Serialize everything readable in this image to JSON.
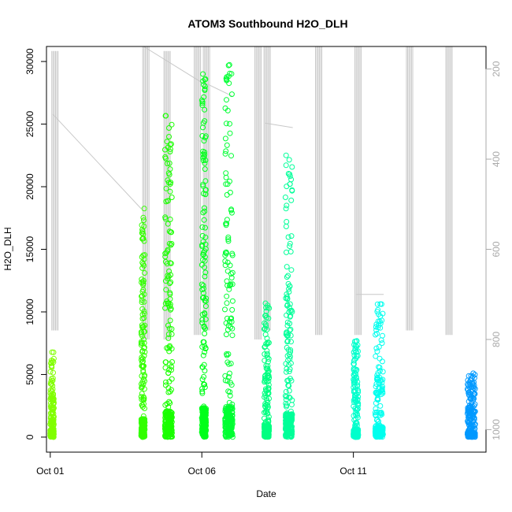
{
  "chart_data": {
    "type": "scatter",
    "title": "ATOM3 Southbound H2O_DLH",
    "xlabel": "Date",
    "ylabel": "H2O_DLH",
    "x_axis": {
      "type": "date",
      "range": [
        "2016-09-30T21:00",
        "2016-10-15T09:00"
      ],
      "ticks": [
        {
          "x": "2016-10-01",
          "label": "Oct 01"
        },
        {
          "x": "2016-10-06",
          "label": "Oct 06"
        },
        {
          "x": "2016-10-11",
          "label": "Oct 11"
        }
      ]
    },
    "y_axis": {
      "range": [
        -1200,
        31200
      ],
      "ticks": [
        0,
        5000,
        10000,
        15000,
        20000,
        25000,
        30000
      ]
    },
    "y2_axis": {
      "label": "",
      "reversed": true,
      "range": [
        1050,
        150
      ],
      "ticks": [
        200,
        400,
        600,
        800,
        1000
      ],
      "color": "#a9a9a9"
    },
    "grid": false,
    "legend": "none",
    "marker": "open-circle",
    "series_pressure_color": "#c8c8c8",
    "flights": [
      {
        "date": "2016-10-01",
        "start": 0.0,
        "end": 0.12,
        "h2o_max": 6900,
        "color": "#80ff00"
      },
      {
        "date": "2016-10-04",
        "start": 0.0,
        "end": 0.12,
        "h2o_max": 18300,
        "color": "#33ff00"
      },
      {
        "date": "2016-10-04",
        "start": 0.78,
        "end": 1.02,
        "h2o_max": 25800,
        "color": "#1aff00"
      },
      {
        "date": "2016-10-06",
        "start": 0.0,
        "end": 0.14,
        "h2o_max": 29000,
        "color": "#00ff1a"
      },
      {
        "date": "2016-10-06",
        "start": 0.76,
        "end": 1.02,
        "h2o_max": 30200,
        "color": "#00ff33"
      },
      {
        "date": "2016-10-08",
        "start": 0.06,
        "end": 0.22,
        "h2o_max": 11400,
        "color": "#00ff80"
      },
      {
        "date": "2016-10-08",
        "start": 0.76,
        "end": 0.98,
        "h2o_max": 23000,
        "color": "#00ff99"
      },
      {
        "date": "2016-10-11",
        "start": 0.0,
        "end": 0.16,
        "h2o_max": 7700,
        "color": "#00ffcc"
      },
      {
        "date": "2016-10-11",
        "start": 0.72,
        "end": 0.98,
        "h2o_max": 10700,
        "color": "#00ffee"
      },
      {
        "date": "2016-10-14",
        "start": 0.76,
        "end": 1.02,
        "h2o_max": 5100,
        "color": "#0099ff"
      }
    ],
    "pressure_profiles": [
      {
        "date": "2016-10-01",
        "p_top": 160,
        "p_bottom": 780
      },
      {
        "date": "2016-10-04",
        "p_top": 160,
        "p_bottom": 800
      },
      {
        "date": "2016-10-04",
        "p_top": 150,
        "p_bottom": 800
      },
      {
        "date": "2016-10-05",
        "p_top": 150,
        "p_bottom": 790
      },
      {
        "date": "2016-10-06",
        "p_top": 150,
        "p_bottom": 780
      },
      {
        "date": "2016-10-07",
        "p_top": 150,
        "p_bottom": 800
      },
      {
        "date": "2016-10-08",
        "p_top": 150,
        "p_bottom": 780
      },
      {
        "date": "2016-10-09",
        "p_top": 150,
        "p_bottom": 790
      },
      {
        "date": "2016-10-11",
        "p_top": 150,
        "p_bottom": 790
      },
      {
        "date": "2016-10-12",
        "p_top": 150,
        "p_bottom": 780
      },
      {
        "date": "2016-10-14",
        "p_top": 150,
        "p_bottom": 790
      }
    ],
    "pressure_links": [
      {
        "from": "2016-10-01",
        "to": "2016-10-04",
        "p_from": 300,
        "p_to": 510
      },
      {
        "from": "2016-10-04",
        "to": "2016-10-06",
        "p_from": 150,
        "p_to": 230
      },
      {
        "from": "2016-10-06",
        "to": "2016-10-07",
        "p_from": 230,
        "p_to": 260
      },
      {
        "from": "2016-10-08",
        "to": "2016-10-09",
        "p_from": 320,
        "p_to": 330
      },
      {
        "from": "2016-10-11",
        "to": "2016-10-12",
        "p_from": 700,
        "p_to": 700
      }
    ]
  }
}
